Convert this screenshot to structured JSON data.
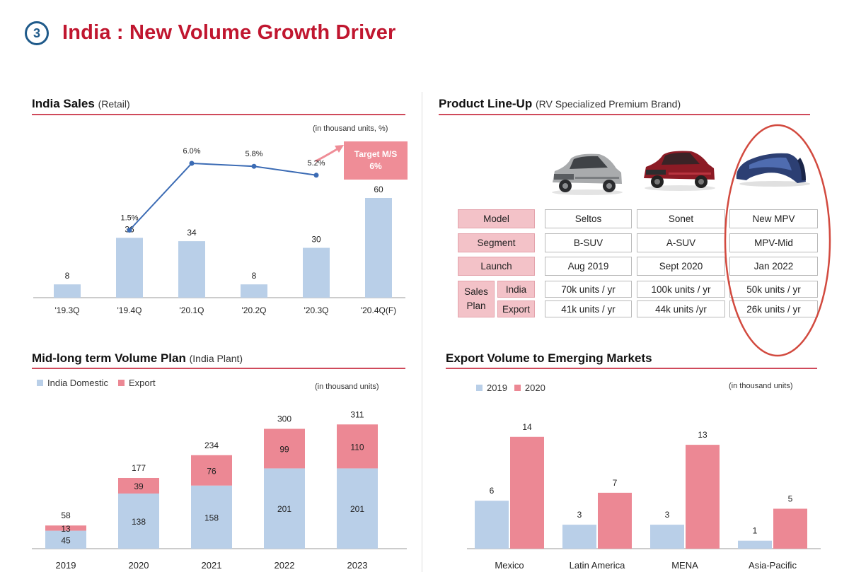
{
  "header": {
    "badge_number": "3",
    "title": "India : New Volume Growth Driver"
  },
  "colors": {
    "title_red": "#c0162f",
    "rule_red": "#cf4a5b",
    "bar_blue": "#b9cfe8",
    "bar_pink": "#ec8894",
    "line_blue": "#3b6bb4",
    "header_pink": "#f3c2c8",
    "highlight_circle": "#d24a3f"
  },
  "india_sales": {
    "title": "India Sales",
    "subtitle": "(Retail)",
    "unit_note": "(in thousand units, %)",
    "target_note": {
      "line1": "Target M/S",
      "line2": "6%"
    }
  },
  "volume_plan": {
    "title": "Mid-long term Volume Plan",
    "subtitle": "(India Plant)",
    "unit_note": "(in thousand units)",
    "legend": [
      "India Domestic",
      "Export"
    ]
  },
  "product_lineup": {
    "title": "Product Line-Up",
    "subtitle": "(RV Specialized Premium Brand)",
    "images": [
      "car-seltos",
      "car-sonet",
      "car-new-mpv"
    ],
    "row_labels": {
      "model": "Model",
      "segment": "Segment",
      "launch": "Launch",
      "sales_plan_1": "Sales",
      "sales_plan_2": "Plan",
      "india": "India",
      "export": "Export"
    },
    "columns": [
      {
        "model": "Seltos",
        "segment": "B-SUV",
        "launch": "Aug 2019",
        "india": "70k units / yr",
        "export": "41k units / yr"
      },
      {
        "model": "Sonet",
        "segment": "A-SUV",
        "launch": "Sept 2020",
        "india": "100k units / yr",
        "export": "44k units /yr"
      },
      {
        "model": "New MPV",
        "segment": "MPV-Mid",
        "launch": "Jan 2022",
        "india": "50k units / yr",
        "export": "26k units / yr"
      }
    ]
  },
  "export_volume": {
    "title": "Export Volume to Emerging Markets",
    "unit_note": "(in thousand units)",
    "legend": [
      "2019",
      "2020"
    ]
  },
  "chart_data": [
    {
      "id": "india-sales",
      "type": "bar",
      "categories": [
        "'19.3Q",
        "'19.4Q",
        "'20.1Q",
        "'20.2Q",
        "'20.3Q",
        "'20.4Q(F)"
      ],
      "series": [
        {
          "values": [
            8,
            36,
            34,
            8,
            30,
            60
          ]
        },
        {
          "type": "line",
          "values": [
            null,
            1.5,
            6.0,
            5.8,
            5.2,
            null
          ],
          "labels": [
            "",
            "1.5%",
            "6.0%",
            "5.8%",
            "5.2%",
            ""
          ]
        }
      ],
      "ylim": [
        0,
        70
      ],
      "ylim_secondary": [
        0,
        8
      ],
      "grid": false,
      "legend": "none"
    },
    {
      "id": "volume-plan",
      "type": "bar",
      "stacked": true,
      "categories": [
        "2019",
        "2020",
        "2021",
        "2022",
        "2023"
      ],
      "series": [
        {
          "name": "India Domestic",
          "values": [
            45,
            138,
            158,
            201,
            201
          ]
        },
        {
          "name": "Export",
          "values": [
            13,
            39,
            76,
            99,
            110
          ]
        }
      ],
      "totals": [
        58,
        177,
        234,
        300,
        311
      ],
      "ylim": [
        0,
        330
      ],
      "grid": false,
      "legend": "top-left"
    },
    {
      "id": "export-volume",
      "type": "bar",
      "categories": [
        "Mexico",
        "Latin America",
        "MENA",
        "Asia-Pacific"
      ],
      "series": [
        {
          "name": "2019",
          "values": [
            6,
            3,
            3,
            1
          ]
        },
        {
          "name": "2020",
          "values": [
            14,
            7,
            13,
            5
          ]
        }
      ],
      "ylim": [
        0,
        16
      ],
      "grid": false,
      "legend": "top-left"
    }
  ]
}
